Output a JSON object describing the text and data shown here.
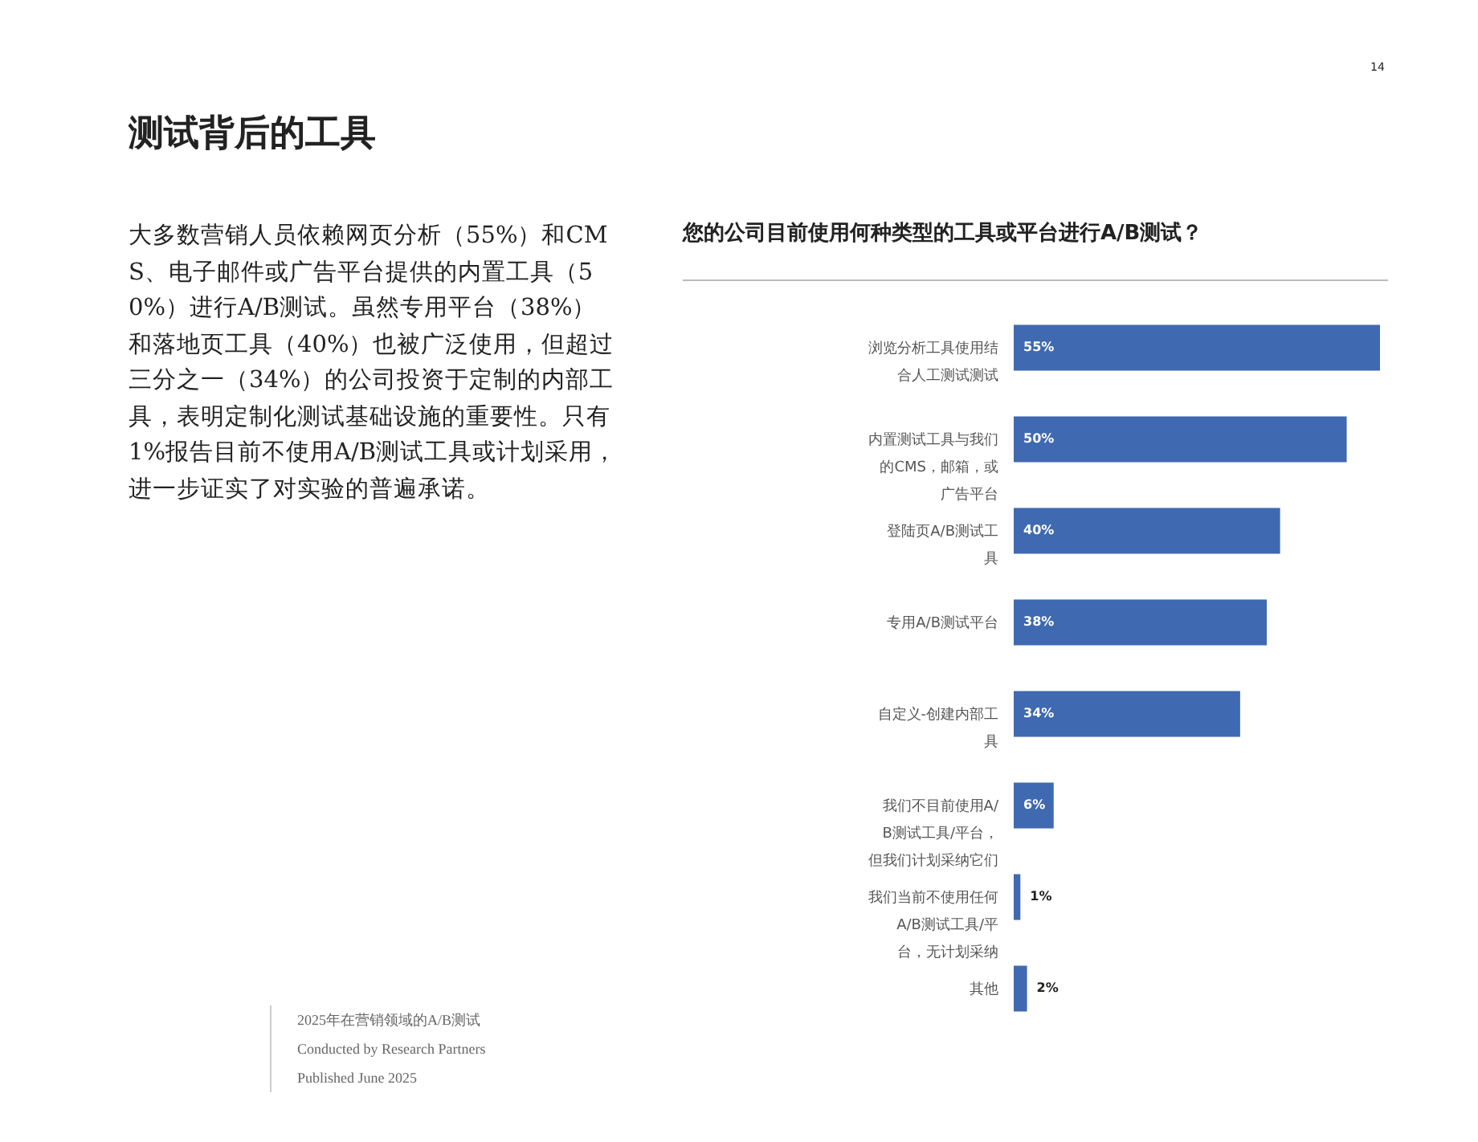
{
  "chart_data": {
    "type": "bar",
    "orientation": "horizontal",
    "title": "测试背后的工具",
    "subtitle": "您的公司目前使用何种类型的工具或平台进行A/B测试？",
    "categories": [
      "浏览分析工具使用结合人工测试测试",
      "内置测试工具与我们的CMS，邮箱，或广告平台",
      "登陆页A/B测试工具",
      "专用A/B测试平台",
      "自定义-创建内部工具",
      "我们不目前使用A/B测试工具/平台，但我们计划采纳它们",
      "我们当前不使用任何A/B测试工具/平台，无计划采纳",
      "其他"
    ],
    "values": [
      55,
      50,
      40,
      38,
      34,
      6,
      1,
      2
    ],
    "value_labels": [
      "55%",
      "50%",
      "40%",
      "38%",
      "34%",
      "6%",
      "1%",
      "2%"
    ],
    "color": "#3f69b0",
    "annotations": [
      "大多数营销人员依赖网页分析（55%）和CMS、电子邮件或广告平台提供的内置工具（50%）进行A/B测试。虽然专用平台（38%）和落地页工具（40%）也被广泛使用，但超过三分之一（34%）的公司投资于定制的内部工具，表明定制化测试基础设施的重要性。只有1%报告目前不使用A/B测试工具或计划采用，进一步证实了对实验的普遍承诺。",
      "14",
      "2025年在营销领域的A/B测试",
      "Conducted by Research Partners",
      "Published June 2025"
    ]
  }
}
